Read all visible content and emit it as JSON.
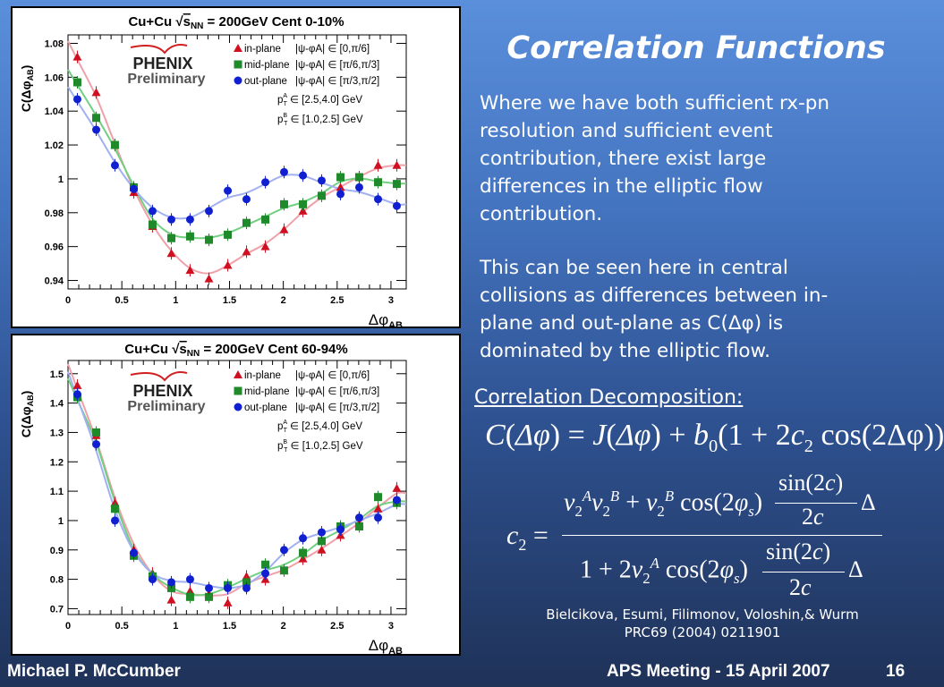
{
  "slide": {
    "title": "Correlation Functions",
    "paragraph1": [
      "Where we have both sufficient rx-pn",
      "resolution and sufficient event",
      "contribution, there exist large",
      "differences in the elliptic flow",
      "contribution."
    ],
    "paragraph2": [
      "This can be seen here in central",
      "collisions as differences between in-",
      "plane and out-plane as C(Δφ) is",
      "dominated by the elliptic flow."
    ],
    "decomposition_heading": "Correlation Decomposition:",
    "formula1": {
      "lhs": "C",
      "arg": "Δφ",
      "eq": " = ",
      "J": "J",
      "plus": " + ",
      "b": "b",
      "b_sub": "0",
      "open": "(1 + 2",
      "c": "c",
      "c_sub": "2",
      "cos": " cos",
      "cos_arg": "(2Δφ))"
    },
    "formula2": {
      "lhs": "c",
      "lhs_sub": "2",
      "eq": "=",
      "v": "v",
      "two": "2",
      "A": "A",
      "B": "B",
      "plus": " + ",
      "cos2phi": " cos(2",
      "phi": "φ",
      "s": "s",
      "close": ")",
      "sin": "sin(2",
      "cvar": "c",
      "sinclose": ")",
      "den2c": "2",
      "delta": "Δ",
      "one": "1 + 2"
    },
    "citation": [
      "Bielcikova, Esumi, Filimonov, Voloshin,& Wurm",
      "PRC69 (2004) 0211901"
    ],
    "footer": {
      "author": "Michael P. McCumber",
      "event": "APS Meeting - 15 April 2007",
      "page": "16"
    }
  },
  "chart_data": [
    {
      "type": "scatter",
      "title_prefix": "Cu+Cu ",
      "title_sqrt": "s",
      "title_sqrt_sub": "NN",
      "title_suffix": " = 200GeV Cent 0-10%",
      "xlabel": "Δφ",
      "xlabel_sub": "AB",
      "ylabel": "C(Δφ",
      "ylabel_sub": "AB",
      "ylabel_close": ")",
      "xlim": [
        0,
        3.1416
      ],
      "ylim": [
        0.935,
        1.085
      ],
      "xticks": [
        0,
        0.5,
        1,
        1.5,
        2,
        2.5,
        3
      ],
      "xtick_labels": [
        "0",
        "0.5",
        "1",
        "1.5",
        "2",
        "2.5",
        "3"
      ],
      "yticks": [
        0.94,
        0.96,
        0.98,
        1,
        1.02,
        1.04,
        1.06,
        1.08
      ],
      "ytick_labels": [
        "0.94",
        "0.96",
        "0.98",
        "1",
        "1.02",
        "1.04",
        "1.06",
        "1.08"
      ],
      "logo": "PHENIX",
      "logo_sub": "Preliminary",
      "legend_placement": "top-right",
      "annotations": [
        {
          "p": "p",
          "sub": "T",
          "sup": "A",
          "text": " ∈ [2.5,4.0] GeV"
        },
        {
          "p": "p",
          "sub": "T",
          "sup": "B",
          "text": " ∈ [1.0,2.5] GeV"
        }
      ],
      "x": [
        0.087,
        0.262,
        0.436,
        0.611,
        0.785,
        0.96,
        1.134,
        1.309,
        1.484,
        1.658,
        1.833,
        2.007,
        2.182,
        2.356,
        2.531,
        2.705,
        2.88,
        3.054
      ],
      "series": [
        {
          "name": "in-plane",
          "range": "|ψ-φA| ∈ [0,π/6]",
          "marker": "triangle",
          "color": "#d01020",
          "fit_color": "#f0a0a8",
          "values": [
            1.072,
            1.051,
            1.02,
            0.992,
            0.972,
            0.956,
            0.946,
            0.941,
            0.949,
            0.957,
            0.96,
            0.97,
            0.981,
            0.99,
            0.995,
            1.001,
            1.008,
            1.008
          ]
        },
        {
          "name": "mid-plane",
          "range": "|ψ-φA| ∈ [π/6,π/3]",
          "marker": "square",
          "color": "#1e8a2a",
          "fit_color": "#70d080",
          "values": [
            1.057,
            1.036,
            1.02,
            0.995,
            0.973,
            0.965,
            0.966,
            0.964,
            0.967,
            0.974,
            0.976,
            0.985,
            0.985,
            0.99,
            1.001,
            1.001,
            0.998,
            0.997
          ]
        },
        {
          "name": "out-plane",
          "range": "|ψ-φA| ∈ [π/3,π/2]",
          "marker": "circle",
          "color": "#1020d0",
          "fit_color": "#a0b0f0",
          "values": [
            1.047,
            1.029,
            1.008,
            0.994,
            0.981,
            0.976,
            0.976,
            0.981,
            0.993,
            0.988,
            0.998,
            1.004,
            1.002,
            0.999,
            0.991,
            0.995,
            0.988,
            0.984
          ]
        }
      ]
    },
    {
      "type": "scatter",
      "title_prefix": "Cu+Cu ",
      "title_sqrt": "s",
      "title_sqrt_sub": "NN",
      "title_suffix": " = 200GeV Cent 60-94%",
      "xlabel": "Δφ",
      "xlabel_sub": "AB",
      "ylabel": "C(Δφ",
      "ylabel_sub": "AB",
      "ylabel_close": ")",
      "xlim": [
        0,
        3.1416
      ],
      "ylim": [
        0.68,
        1.545
      ],
      "xticks": [
        0,
        0.5,
        1,
        1.5,
        2,
        2.5,
        3
      ],
      "xtick_labels": [
        "0",
        "0.5",
        "1",
        "1.5",
        "2",
        "2.5",
        "3"
      ],
      "yticks": [
        0.7,
        0.8,
        0.9,
        1,
        1.1,
        1.2,
        1.3,
        1.4,
        1.5
      ],
      "ytick_labels": [
        "0.7",
        "0.8",
        "0.9",
        "1",
        "1.1",
        "1.2",
        "1.3",
        "1.4",
        "1.5"
      ],
      "logo": "PHENIX",
      "logo_sub": "Preliminary",
      "legend_placement": "top-right",
      "annotations": [
        {
          "p": "p",
          "sub": "T",
          "sup": "A",
          "text": " ∈ [2.5,4.0] GeV"
        },
        {
          "p": "p",
          "sub": "T",
          "sup": "B",
          "text": " ∈ [1.0,2.5] GeV"
        }
      ],
      "x": [
        0.087,
        0.262,
        0.436,
        0.611,
        0.785,
        0.96,
        1.134,
        1.309,
        1.484,
        1.658,
        1.833,
        2.007,
        2.182,
        2.356,
        2.531,
        2.705,
        2.88,
        3.054
      ],
      "series": [
        {
          "name": "in-plane",
          "range": "|ψ-φA| ∈ [0,π/6]",
          "marker": "triangle",
          "color": "#d01020",
          "fit_color": "#f0a0a8",
          "values": [
            1.46,
            1.29,
            1.06,
            0.9,
            0.82,
            0.73,
            0.76,
            0.75,
            0.72,
            0.81,
            0.8,
            0.83,
            0.87,
            0.9,
            0.95,
            0.99,
            1.04,
            1.11
          ]
        },
        {
          "name": "mid-plane",
          "range": "|ψ-φA| ∈ [π/6,π/3]",
          "marker": "square",
          "color": "#1e8a2a",
          "fit_color": "#70d080",
          "values": [
            1.42,
            1.3,
            1.04,
            0.88,
            0.81,
            0.77,
            0.74,
            0.74,
            0.78,
            0.79,
            0.85,
            0.83,
            0.89,
            0.93,
            0.98,
            0.98,
            1.08,
            1.06
          ]
        },
        {
          "name": "out-plane",
          "range": "|ψ-φA| ∈ [π/3,π/2]",
          "marker": "circle",
          "color": "#1020d0",
          "fit_color": "#a0b0f0",
          "values": [
            1.43,
            1.26,
            1.0,
            0.89,
            0.8,
            0.79,
            0.8,
            0.77,
            0.77,
            0.77,
            0.82,
            0.9,
            0.94,
            0.96,
            0.97,
            1.01,
            1.01,
            1.07
          ]
        }
      ]
    }
  ]
}
